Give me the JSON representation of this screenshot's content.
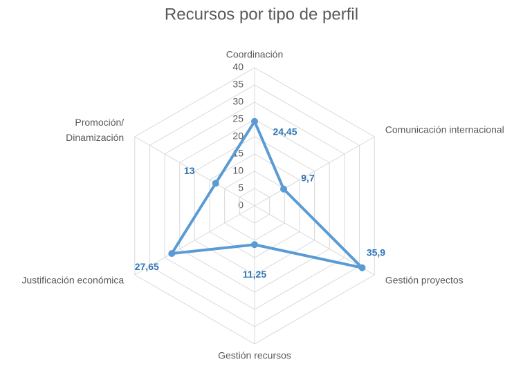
{
  "chart_data": {
    "type": "radar",
    "title": "Recursos por tipo de perfil",
    "categories": [
      "Coordinación",
      "Comunicación internacional",
      "Gestión proyectos",
      "Gestión recursos",
      "Justificación económica",
      "Promoción/\nDinamización"
    ],
    "values": [
      24.45,
      9.7,
      35.9,
      11.25,
      27.65,
      13
    ],
    "value_labels": [
      "24,45",
      "9,7",
      "35,9",
      "11,25",
      "27,65",
      "13"
    ],
    "color": "#5b9bd5",
    "ylim": [
      0,
      40
    ],
    "yticks": [
      0,
      5,
      10,
      15,
      20,
      25,
      30,
      35,
      40
    ],
    "grid": true
  }
}
